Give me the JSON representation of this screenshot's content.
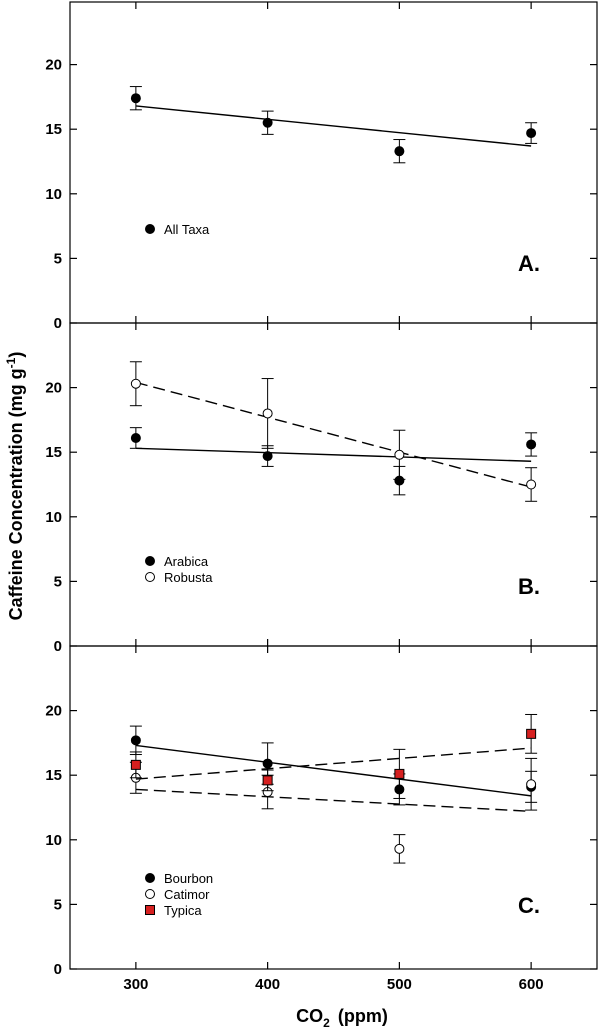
{
  "chart_data": {
    "type": "scatter",
    "xlabel": "CO",
    "xlabel_sub": "2",
    "xlabel_unit": "(ppm)",
    "ylabel": "Caffeine Concentration (mg g",
    "ylabel_sup": "-1",
    "ylabel_close": ")",
    "xlim": [
      250,
      650
    ],
    "ylim": [
      0,
      25
    ],
    "x_ticks": [
      300,
      400,
      500,
      600
    ],
    "y_ticks": [
      0,
      5,
      10,
      15,
      20
    ],
    "panels": [
      {
        "label": "A.",
        "series": [
          {
            "name": "All Taxa",
            "marker": "filled-circle",
            "color": "#000000",
            "x": [
              300,
              400,
              500,
              600
            ],
            "y": [
              17.4,
              15.5,
              13.3,
              14.7
            ],
            "err": [
              0.9,
              0.9,
              0.9,
              0.8
            ],
            "fit": {
              "x": [
                300,
                600
              ],
              "y": [
                16.8,
                13.7
              ],
              "style": "solid"
            }
          }
        ]
      },
      {
        "label": "B.",
        "series": [
          {
            "name": "Arabica",
            "marker": "filled-circle",
            "color": "#000000",
            "x": [
              300,
              400,
              500,
              600
            ],
            "y": [
              16.1,
              14.7,
              12.8,
              15.6
            ],
            "err": [
              0.8,
              0.8,
              1.1,
              0.9
            ],
            "fit": {
              "x": [
                300,
                600
              ],
              "y": [
                15.3,
                14.3
              ],
              "style": "solid"
            }
          },
          {
            "name": "Robusta",
            "marker": "open-circle",
            "color": "#000000",
            "x": [
              300,
              400,
              500,
              600
            ],
            "y": [
              20.3,
              18.0,
              14.8,
              12.5
            ],
            "err": [
              1.7,
              2.7,
              1.9,
              1.3
            ],
            "fit": {
              "x": [
                300,
                600
              ],
              "y": [
                20.4,
                12.3
              ],
              "style": "dashed"
            }
          }
        ]
      },
      {
        "label": "C.",
        "series": [
          {
            "name": "Bourbon",
            "marker": "filled-circle",
            "color": "#000000",
            "x": [
              300,
              400,
              500,
              600
            ],
            "y": [
              17.7,
              15.9,
              13.9,
              14.1
            ],
            "err": [
              1.1,
              1.6,
              1.2,
              1.2
            ],
            "fit": {
              "x": [
                300,
                600
              ],
              "y": [
                17.3,
                13.4
              ],
              "style": "solid"
            }
          },
          {
            "name": "Catimor",
            "marker": "open-circle",
            "color": "#000000",
            "x": [
              300,
              400,
              500,
              600
            ],
            "y": [
              14.8,
              13.7,
              9.3,
              14.3
            ],
            "err": [
              1.2,
              1.3,
              1.1,
              2.0
            ],
            "fit": {
              "x": [
                300,
                600
              ],
              "y": [
                13.9,
                12.2
              ],
              "style": "dashed"
            }
          },
          {
            "name": "Typica",
            "marker": "filled-square",
            "color": "#d62020",
            "x": [
              300,
              400,
              500,
              600
            ],
            "y": [
              15.8,
              14.6,
              15.1,
              18.2
            ],
            "err": [
              1.0,
              0.8,
              1.9,
              1.5
            ],
            "fit": {
              "x": [
                300,
                600
              ],
              "y": [
                14.7,
                17.1
              ],
              "style": "dashed"
            }
          }
        ]
      }
    ]
  }
}
